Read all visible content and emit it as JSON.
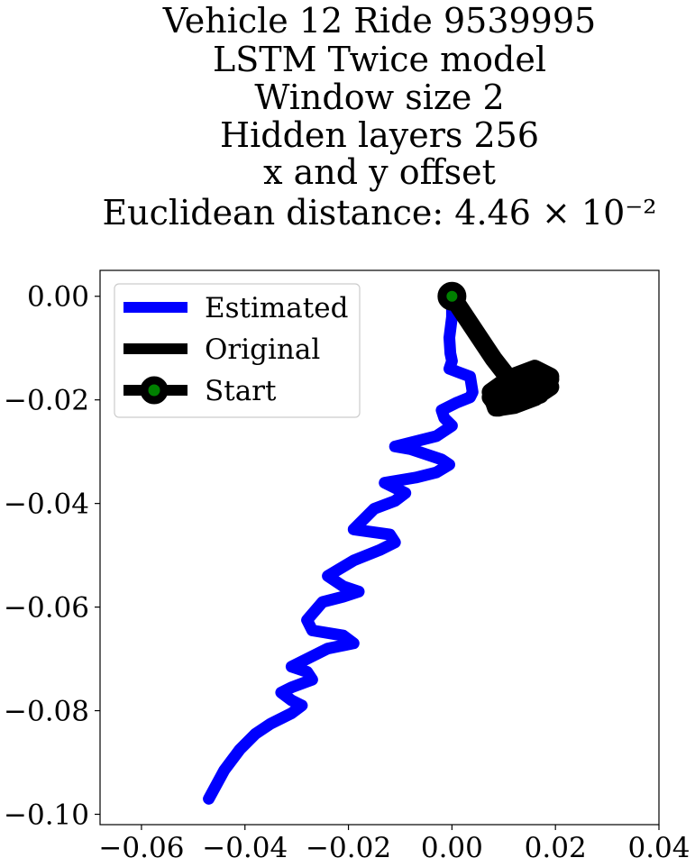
{
  "chart_data": {
    "type": "line",
    "title_lines": [
      "Vehicle 12 Ride 9539995",
      "LSTM Twice model",
      "Window size 2",
      "Hidden layers 256",
      "x and y offset",
      "Euclidean distance: 4.46 × 10⁻²"
    ],
    "xlabel": "",
    "ylabel": "",
    "xlim": [
      -0.068,
      0.04
    ],
    "ylim": [
      -0.102,
      0.005
    ],
    "xticks": [
      -0.06,
      -0.04,
      -0.02,
      0.0,
      0.02,
      0.04
    ],
    "yticks": [
      0.0,
      -0.02,
      -0.04,
      -0.06,
      -0.08,
      -0.1
    ],
    "xtick_labels": [
      "−0.06",
      "−0.04",
      "−0.02",
      "0.00",
      "0.02",
      "0.04"
    ],
    "ytick_labels": [
      "0.00",
      "−0.02",
      "−0.04",
      "−0.06",
      "−0.08",
      "−0.10"
    ],
    "grid": false,
    "legend_position": "upper-left",
    "series": [
      {
        "name": "Estimated",
        "color": "#0000ff",
        "x": [
          0.0,
          0.0,
          -0.0005,
          -0.0003,
          0.0,
          -0.0005,
          0.0035,
          0.004,
          0.0035,
          0.001,
          -0.002,
          -0.0015,
          0.0,
          -0.003,
          -0.007,
          -0.011,
          -0.008,
          -0.002,
          -0.0005,
          -0.003,
          -0.007,
          -0.013,
          -0.009,
          -0.011,
          -0.015,
          -0.019,
          -0.012,
          -0.011,
          -0.014,
          -0.019,
          -0.024,
          -0.021,
          -0.018,
          -0.021,
          -0.025,
          -0.028,
          -0.027,
          -0.021,
          -0.019,
          -0.024,
          -0.029,
          -0.031,
          -0.028,
          -0.027,
          -0.031,
          -0.033,
          -0.031,
          -0.029,
          -0.031,
          -0.033,
          -0.035,
          -0.038,
          -0.041,
          -0.044,
          -0.047
        ],
        "y": [
          0.0,
          -0.004,
          -0.008,
          -0.011,
          -0.0125,
          -0.014,
          -0.0155,
          -0.0185,
          -0.0195,
          -0.0205,
          -0.022,
          -0.0235,
          -0.025,
          -0.027,
          -0.028,
          -0.029,
          -0.0295,
          -0.0315,
          -0.0325,
          -0.034,
          -0.035,
          -0.036,
          -0.038,
          -0.0395,
          -0.041,
          -0.045,
          -0.046,
          -0.0475,
          -0.049,
          -0.051,
          -0.054,
          -0.056,
          -0.057,
          -0.058,
          -0.059,
          -0.0625,
          -0.0645,
          -0.0655,
          -0.067,
          -0.068,
          -0.0705,
          -0.0715,
          -0.0725,
          -0.074,
          -0.0755,
          -0.0765,
          -0.078,
          -0.079,
          -0.0805,
          -0.0815,
          -0.0825,
          -0.0845,
          -0.0875,
          -0.0915,
          -0.097
        ]
      },
      {
        "name": "Original",
        "color": "#000000",
        "x": [
          0.0,
          0.004,
          0.008,
          0.0115,
          0.009,
          0.012,
          0.016,
          0.019,
          0.017,
          0.013,
          0.009,
          0.0075,
          0.01,
          0.014,
          0.018,
          0.019,
          0.016,
          0.012,
          0.0085,
          0.0075,
          0.011,
          0.015,
          0.0185,
          0.017,
          0.0135,
          0.01,
          0.0085,
          0.012,
          0.0165,
          0.019
        ],
        "y": [
          0.0,
          -0.006,
          -0.012,
          -0.0165,
          -0.019,
          -0.0155,
          -0.014,
          -0.0155,
          -0.019,
          -0.0205,
          -0.0215,
          -0.0195,
          -0.017,
          -0.016,
          -0.0155,
          -0.0175,
          -0.0195,
          -0.021,
          -0.0215,
          -0.0185,
          -0.016,
          -0.015,
          -0.016,
          -0.0185,
          -0.02,
          -0.021,
          -0.0185,
          -0.017,
          -0.0165,
          -0.016
        ]
      }
    ],
    "start_marker": {
      "name": "Start",
      "x": 0.0,
      "y": 0.0,
      "edge_color": "#000000",
      "face_color": "#008000"
    }
  }
}
